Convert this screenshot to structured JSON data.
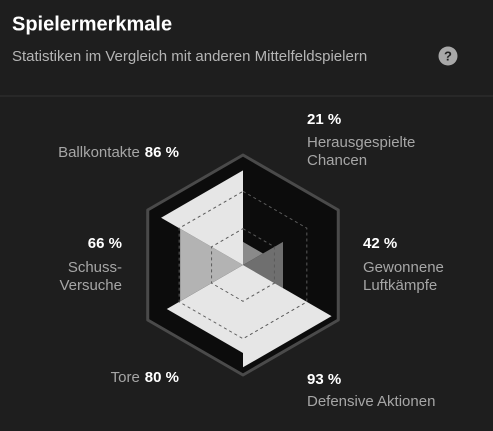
{
  "header": {
    "title": "Spielermerkmale",
    "subtitle": "Statistiken im Vergleich mit anderen Mittelfeldspielern",
    "help_icon": "?"
  },
  "chart_data": {
    "type": "radar",
    "categories": [
      [
        "Herausgespielte",
        "Chancen"
      ],
      [
        "Gewonnene",
        "Luftkämpfe"
      ],
      [
        "Defensive Aktionen"
      ],
      [
        "Tore"
      ],
      [
        "Schuss-",
        "Versuche"
      ],
      [
        "Ballkontakte"
      ]
    ],
    "values": [
      21,
      42,
      93,
      80,
      66,
      86
    ],
    "value_labels": [
      "21 %",
      "42 %",
      "93 %",
      "80 %",
      "66 %",
      "86 %"
    ],
    "colors": [
      "#8a8a8a",
      "#6f6f6f",
      "#e6e6e6",
      "#e6e6e6",
      "#b3b3b3",
      "#e6e6e6"
    ],
    "rlim": [
      0,
      100
    ],
    "rticks": [
      33,
      67,
      100
    ],
    "grid": true
  }
}
